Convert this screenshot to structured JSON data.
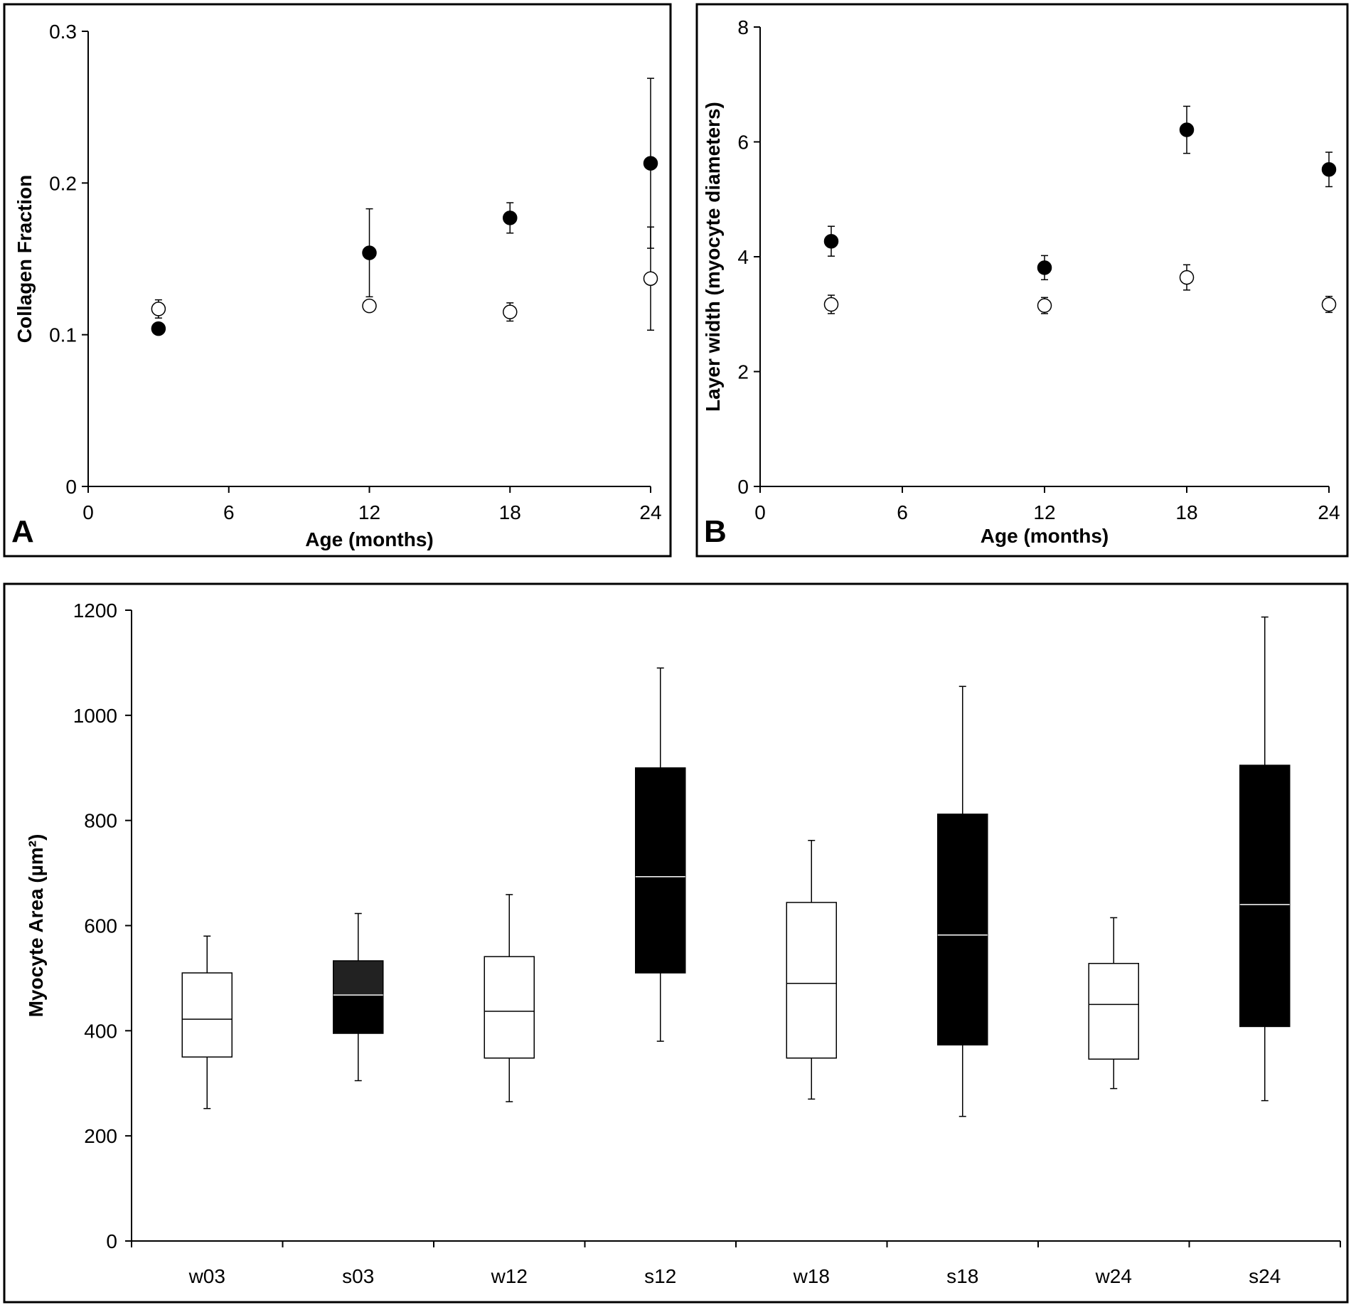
{
  "chart_data": [
    {
      "type": "scatter",
      "panel_label": "A",
      "xlabel": "Age (months)",
      "ylabel": "Collagen Fraction",
      "xlim": [
        0,
        24
      ],
      "ylim": [
        0,
        0.3
      ],
      "xticks": [
        0,
        6,
        12,
        18,
        24
      ],
      "yticks": [
        0,
        0.1,
        0.2,
        0.3
      ],
      "ytick_labels": [
        "0",
        "0.1",
        "0.2",
        "0.3"
      ],
      "series": [
        {
          "marker": "filled",
          "points": [
            {
              "x": 3,
              "y": 0.104,
              "err": 0.0
            },
            {
              "x": 12,
              "y": 0.154,
              "err": 0.029
            },
            {
              "x": 18,
              "y": 0.177,
              "err": 0.01
            },
            {
              "x": 24,
              "y": 0.213,
              "err": 0.056
            }
          ]
        },
        {
          "marker": "open",
          "points": [
            {
              "x": 3,
              "y": 0.117,
              "err": 0.006
            },
            {
              "x": 12,
              "y": 0.119,
              "err": 0.0
            },
            {
              "x": 18,
              "y": 0.115,
              "err": 0.006
            },
            {
              "x": 24,
              "y": 0.137,
              "err": 0.034
            }
          ]
        }
      ]
    },
    {
      "type": "scatter",
      "panel_label": "B",
      "xlabel": "Age (months)",
      "ylabel": "Layer width (myocyte diameters)",
      "xlim": [
        0,
        24
      ],
      "ylim": [
        0,
        8
      ],
      "xticks": [
        0,
        6,
        12,
        18,
        24
      ],
      "yticks": [
        0,
        2,
        4,
        6,
        8
      ],
      "ytick_labels": [
        "0",
        "2",
        "4",
        "6",
        "8"
      ],
      "series": [
        {
          "marker": "filled",
          "points": [
            {
              "x": 3,
              "y": 4.27,
              "err": 0.26
            },
            {
              "x": 12,
              "y": 3.81,
              "err": 0.21
            },
            {
              "x": 18,
              "y": 6.21,
              "err": 0.41
            },
            {
              "x": 24,
              "y": 5.52,
              "err": 0.3
            }
          ]
        },
        {
          "marker": "open",
          "points": [
            {
              "x": 3,
              "y": 3.17,
              "err": 0.16
            },
            {
              "x": 12,
              "y": 3.15,
              "err": 0.14
            },
            {
              "x": 18,
              "y": 3.64,
              "err": 0.22
            },
            {
              "x": 24,
              "y": 3.17,
              "err": 0.14
            }
          ]
        }
      ]
    },
    {
      "type": "box",
      "ylabel": "Myocyte Area (µm²)",
      "ylim": [
        0,
        1200
      ],
      "yticks": [
        0,
        200,
        400,
        600,
        800,
        1000,
        1200
      ],
      "ytick_labels": [
        "0",
        "200",
        "400",
        "600",
        "800",
        "1000",
        "1200"
      ],
      "categories": [
        "w03",
        "s03",
        "w12",
        "s12",
        "w18",
        "s18",
        "w24",
        "s24"
      ],
      "boxes": [
        {
          "min": 252,
          "q1": 350,
          "median": 422,
          "q3": 510,
          "max": 580,
          "fill": "#ffffff"
        },
        {
          "min": 305,
          "q1": 395,
          "median": 468,
          "q3": 533,
          "max": 623,
          "fill": "#000000",
          "upper_fill": "#222222"
        },
        {
          "min": 265,
          "q1": 348,
          "median": 437,
          "q3": 541,
          "max": 659,
          "fill": "#ffffff"
        },
        {
          "min": 380,
          "q1": 510,
          "median": 693,
          "q3": 900,
          "max": 1090,
          "fill": "#000000"
        },
        {
          "min": 270,
          "q1": 348,
          "median": 490,
          "q3": 644,
          "max": 762,
          "fill": "#ffffff"
        },
        {
          "min": 237,
          "q1": 373,
          "median": 582,
          "q3": 812,
          "max": 1055,
          "fill": "#000000"
        },
        {
          "min": 290,
          "q1": 346,
          "median": 450,
          "q3": 528,
          "max": 615,
          "fill": "#ffffff"
        },
        {
          "min": 267,
          "q1": 408,
          "median": 640,
          "q3": 905,
          "max": 1187,
          "fill": "#000000"
        }
      ]
    }
  ]
}
